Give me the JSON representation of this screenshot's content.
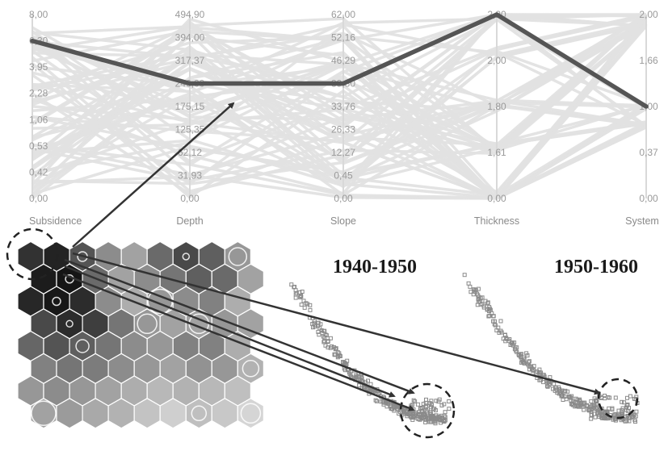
{
  "chart_data": [
    {
      "type": "parallel-coordinates",
      "axes": [
        {
          "name": "Subsidence",
          "ticks": [
            "8,00",
            "6,30",
            "3,95",
            "2,28",
            "1,06",
            "0,53",
            "0,42",
            "0,00"
          ]
        },
        {
          "name": "Depth",
          "ticks": [
            "494,90",
            "394,00",
            "317,37",
            "246,00",
            "175,15",
            "125,35",
            "62,12",
            "31,93",
            "0,00"
          ]
        },
        {
          "name": "Slope",
          "ticks": [
            "62,00",
            "52,16",
            "46,29",
            "39,80",
            "33,76",
            "26,33",
            "12,27",
            "0,45",
            "0,00"
          ]
        },
        {
          "name": "Thickness",
          "ticks": [
            "2,20",
            "2,00",
            "1,80",
            "1,61",
            "0,00"
          ]
        },
        {
          "name": "System",
          "ticks": [
            "2,00",
            "1,66",
            "1,00",
            "0,37",
            "0,00"
          ]
        }
      ],
      "highlighted_line": {
        "values": [
          6.3,
          246.0,
          39.8,
          2.2,
          1.0
        ]
      },
      "colors": {
        "highlight": "#555555",
        "background_lines": "#e2e2e2",
        "axis": "#d9d9d9",
        "tick_text": "#9a9a9a"
      }
    },
    {
      "type": "heatmap",
      "grid": "hexagonal self-organizing map",
      "columns": 9,
      "rows": 8,
      "shade": [
        [
          0.85,
          0.92,
          0.7,
          0.45,
          0.35,
          0.6,
          0.75,
          0.65,
          0.4
        ],
        [
          0.95,
          0.98,
          0.6,
          0.35,
          0.45,
          0.55,
          0.65,
          0.6,
          0.35
        ],
        [
          0.9,
          0.97,
          0.88,
          0.45,
          0.3,
          0.4,
          0.45,
          0.5,
          0.3
        ],
        [
          0.75,
          0.88,
          0.8,
          0.55,
          0.4,
          0.35,
          0.35,
          0.4,
          0.35
        ],
        [
          0.62,
          0.7,
          0.65,
          0.55,
          0.45,
          0.4,
          0.5,
          0.5,
          0.3
        ],
        [
          0.5,
          0.55,
          0.52,
          0.45,
          0.4,
          0.35,
          0.42,
          0.4,
          0.28
        ],
        [
          0.4,
          0.45,
          0.4,
          0.35,
          0.3,
          0.25,
          0.28,
          0.25,
          0.22
        ],
        [
          0.35,
          0.38,
          0.32,
          0.28,
          0.2,
          0.15,
          0.22,
          0.18,
          0.12
        ]
      ],
      "colors": {
        "low": "#f0f0f0",
        "high": "#111111",
        "marker": "#ffffff",
        "highlight_circle": "#222222"
      }
    },
    {
      "type": "scatter",
      "panels": [
        {
          "title": "1940-1950"
        },
        {
          "title": "1950-1960"
        }
      ],
      "colors": {
        "points": "#8a8a8a",
        "link_arrows": "#333333"
      }
    }
  ]
}
